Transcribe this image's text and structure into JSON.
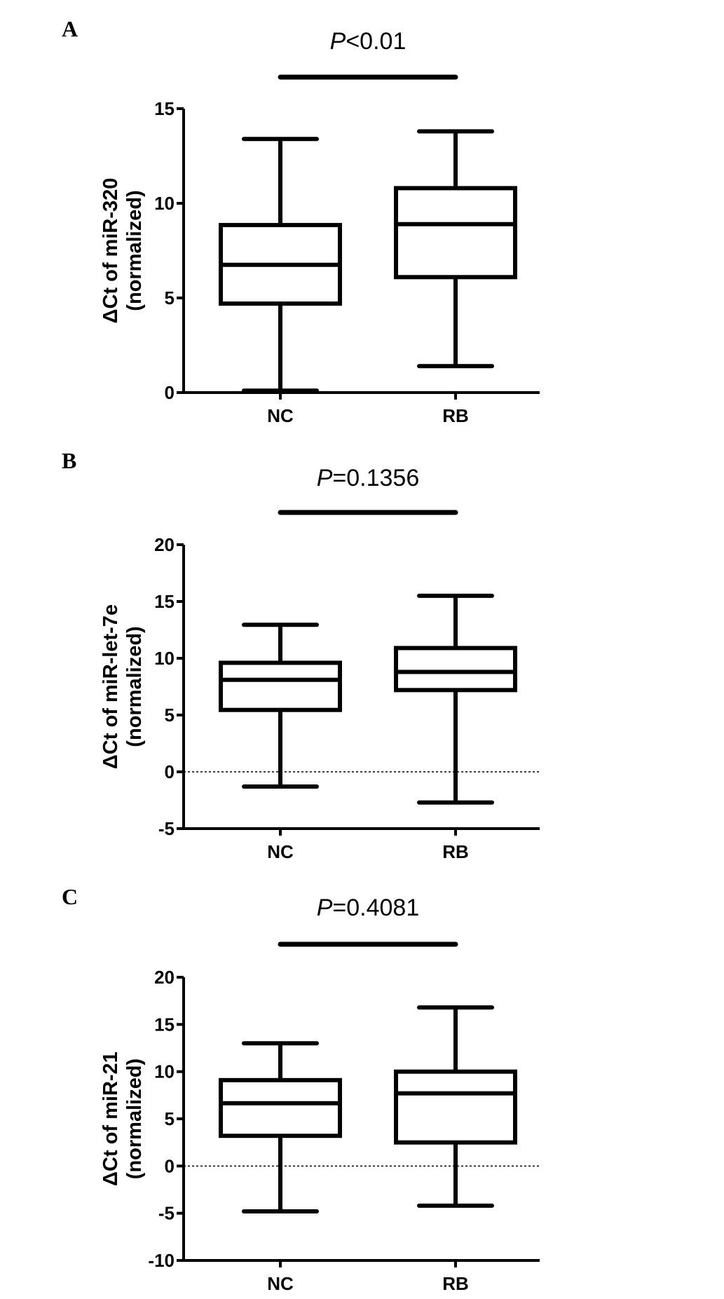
{
  "chart_data": [
    {
      "type": "box",
      "panel_label": "A",
      "p_label": "P",
      "p_value": "<0.01",
      "ylabel_line1": "ΔCt of miR-320",
      "ylabel_line2": "(normalized)",
      "categories": [
        "NC",
        "RB"
      ],
      "ylim": [
        0,
        15
      ],
      "yticks": [
        0,
        5,
        10,
        15
      ],
      "zero_line": false,
      "series": [
        {
          "category": "NC",
          "min": 0.1,
          "q1": 4.7,
          "median": 6.75,
          "q3": 8.85,
          "max": 13.4
        },
        {
          "category": "RB",
          "min": 1.4,
          "q1": 6.1,
          "median": 8.9,
          "q3": 10.8,
          "max": 13.8
        }
      ]
    },
    {
      "type": "box",
      "panel_label": "B",
      "p_label": "P",
      "p_value": "=0.1356",
      "ylabel_line1": "ΔCt of miR-let-7e",
      "ylabel_line2": "(normalized)",
      "categories": [
        "NC",
        "RB"
      ],
      "ylim": [
        -5,
        20
      ],
      "yticks": [
        -5,
        0,
        5,
        10,
        15,
        20
      ],
      "zero_line": true,
      "series": [
        {
          "category": "NC",
          "min": -1.3,
          "q1": 5.45,
          "median": 8.1,
          "q3": 9.6,
          "max": 12.95
        },
        {
          "category": "RB",
          "min": -2.7,
          "q1": 7.2,
          "median": 8.8,
          "q3": 10.9,
          "max": 15.5
        }
      ]
    },
    {
      "type": "box",
      "panel_label": "C",
      "p_label": "P",
      "p_value": "=0.4081",
      "ylabel_line1": "ΔCt of miR-21",
      "ylabel_line2": "(normalized)",
      "categories": [
        "NC",
        "RB"
      ],
      "ylim": [
        -10,
        20
      ],
      "yticks": [
        -10,
        -5,
        0,
        5,
        10,
        15,
        20
      ],
      "zero_line": true,
      "series": [
        {
          "category": "NC",
          "min": -4.8,
          "q1": 3.2,
          "median": 6.65,
          "q3": 9.1,
          "max": 13.0
        },
        {
          "category": "RB",
          "min": -4.2,
          "q1": 2.5,
          "median": 7.7,
          "q3": 10.0,
          "max": 16.8
        }
      ]
    }
  ]
}
